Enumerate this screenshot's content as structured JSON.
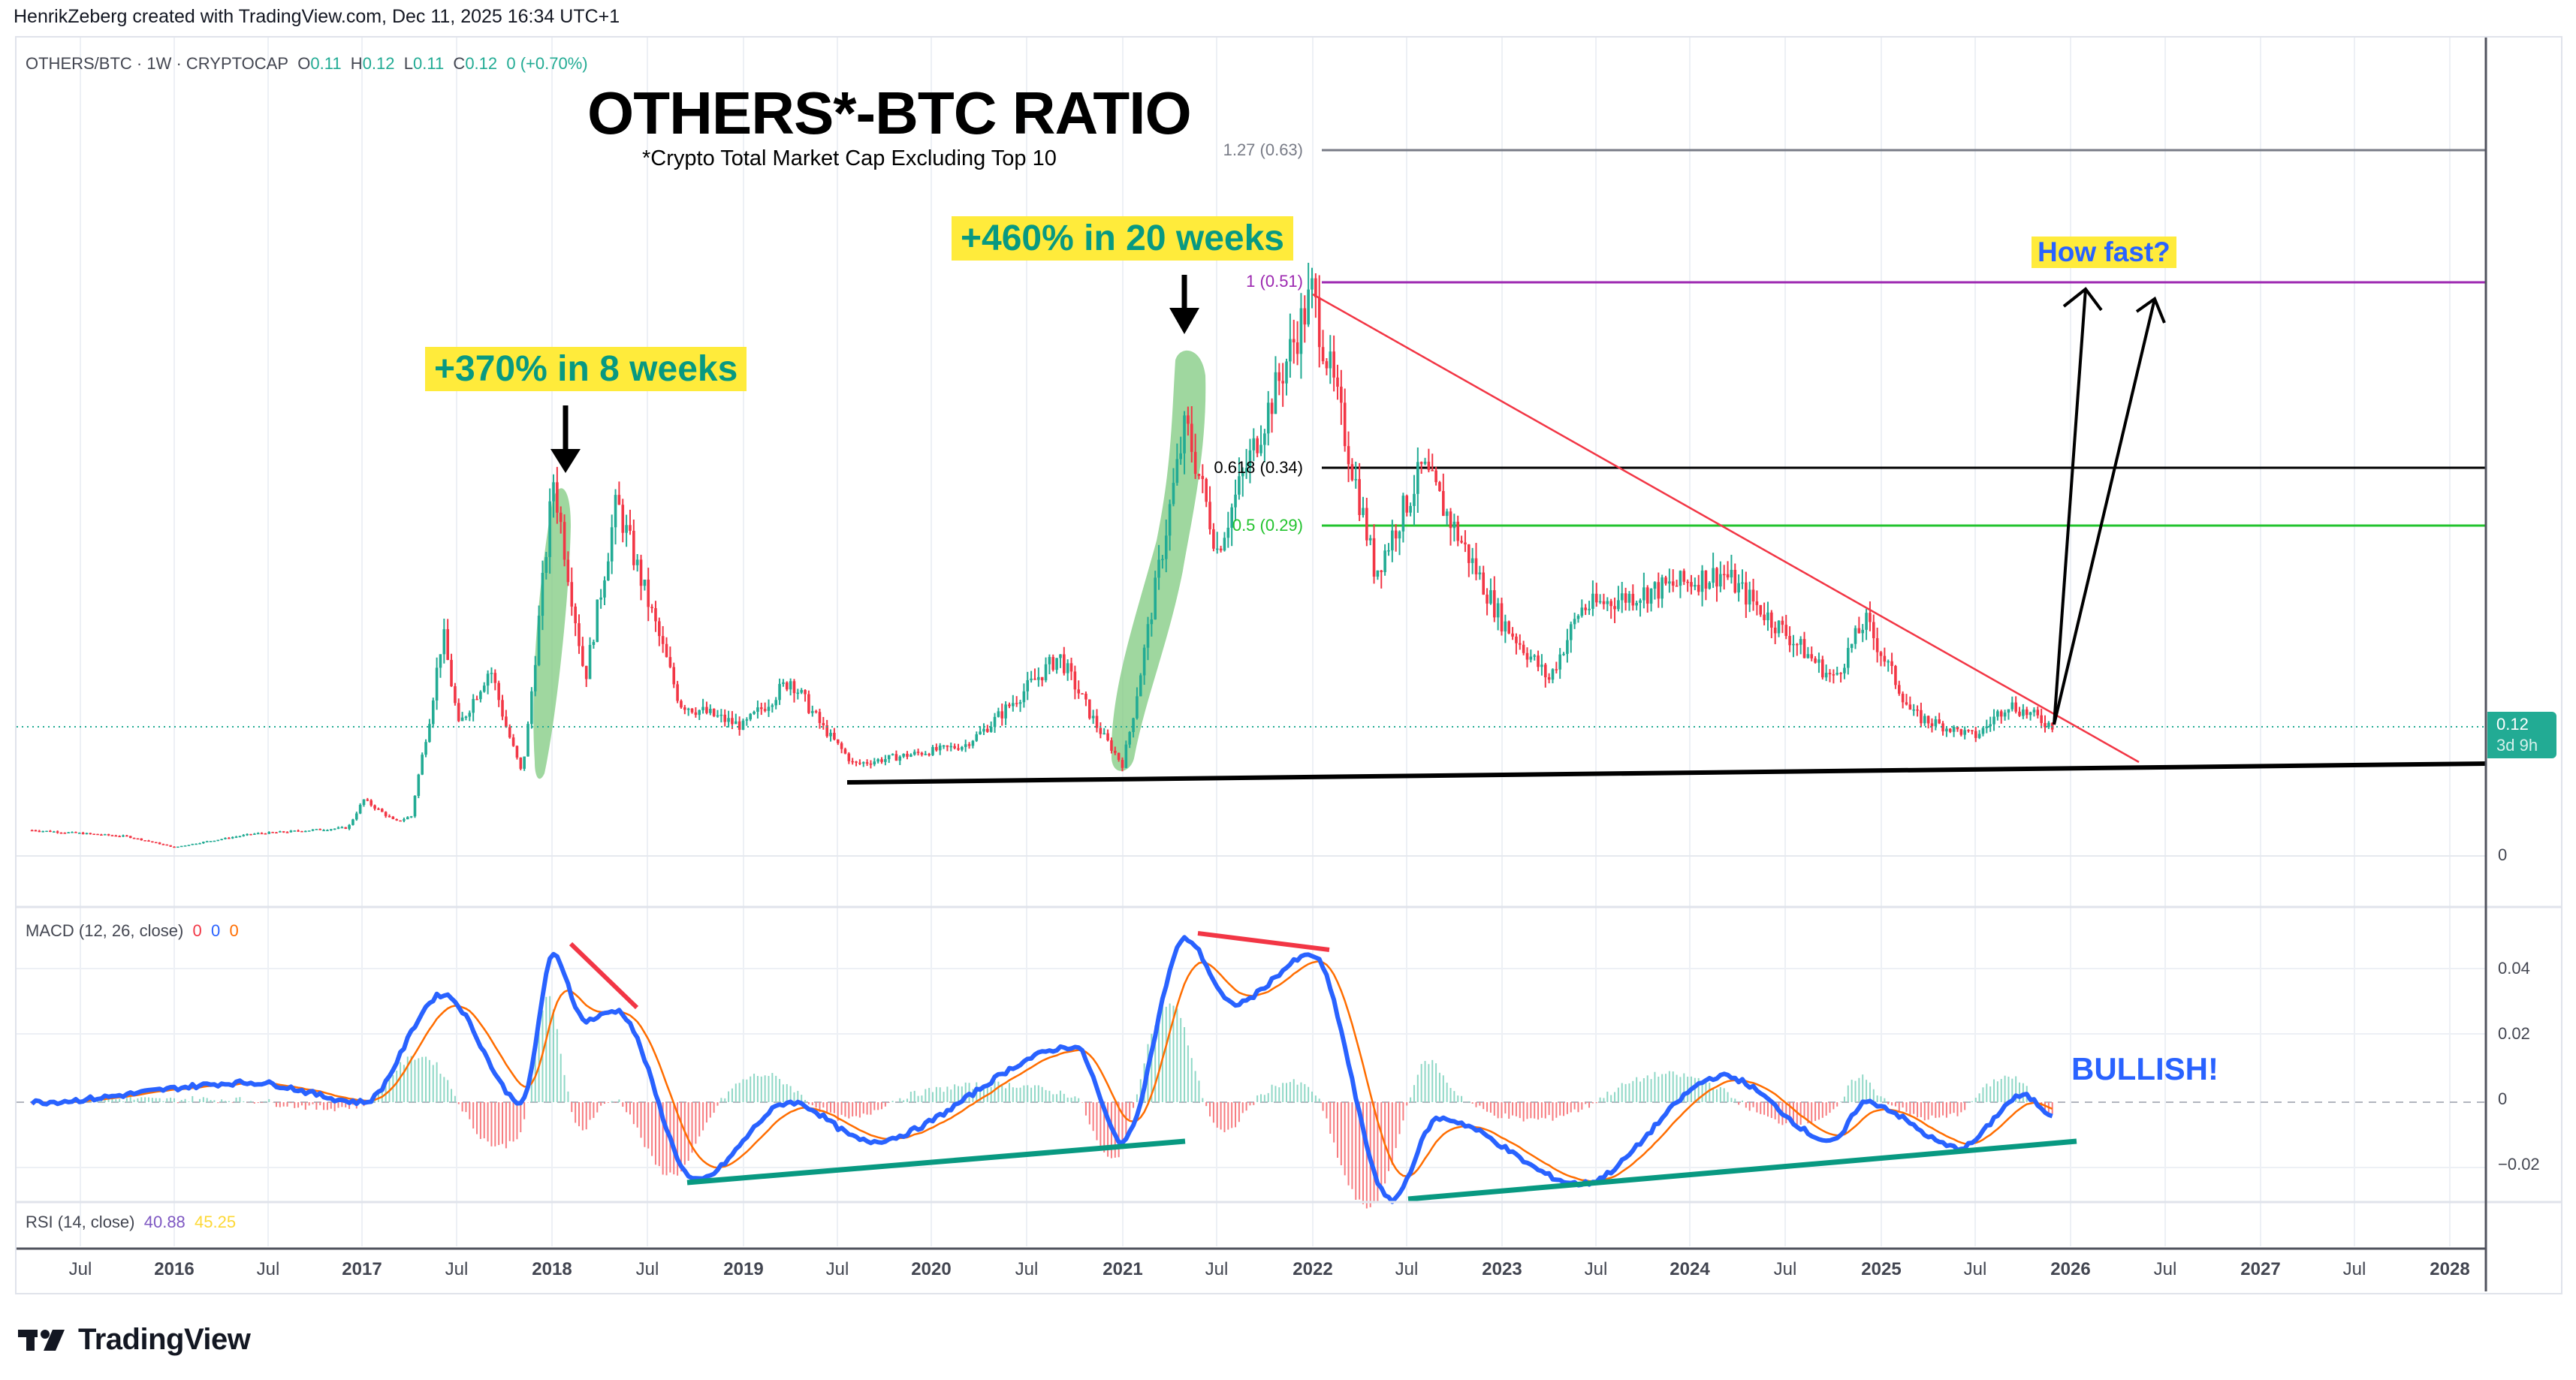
{
  "credit": "HenrikZeberg created with TradingView.com, Dec 11, 2025 16:34 UTC+1",
  "header": {
    "symbol": "OTHERS/BTC · 1W · CRYPTOCAP",
    "ohlc": [
      {
        "k": "O",
        "v": "0.11"
      },
      {
        "k": "H",
        "v": "0.12"
      },
      {
        "k": "L",
        "v": "0.11"
      },
      {
        "k": "C",
        "v": "0.12"
      }
    ],
    "change": "0 (+0.70%)"
  },
  "annotations": {
    "title": "OTHERS*-BTC RATIO",
    "subtitle": "*Crypto Total Market Cap Excluding Top 10",
    "callout_2018": "+370% in 8 weeks",
    "callout_2021": "+460% in 20 weeks",
    "callout_future": "How fast?",
    "macd_note": "BULLISH!"
  },
  "fib_levels": [
    {
      "label": "1.27 (0.63)",
      "y": 200,
      "color": "#787b86",
      "width": 3
    },
    {
      "label": "1 (0.51)",
      "y": 376,
      "color": "#9c27b0",
      "width": 3
    },
    {
      "label": "0.618 (0.34)",
      "y": 623,
      "color": "#000000",
      "width": 3
    },
    {
      "label": "0.5 (0.29)",
      "y": 700,
      "color": "#22c32e",
      "width": 3
    }
  ],
  "price_axis": {
    "current_price": "0.12",
    "countdown": "3d 9h",
    "zero_label": "0"
  },
  "macd": {
    "legend": "MACD (12, 26, close)",
    "values": [
      {
        "v": "0",
        "color": "#f23645"
      },
      {
        "v": "0",
        "color": "#2962ff"
      },
      {
        "v": "0",
        "color": "#ff6d00"
      }
    ],
    "axis": [
      "0.04",
      "0.02",
      "0",
      "−0.02"
    ]
  },
  "rsi": {
    "legend": "RSI (14, close)",
    "values": [
      {
        "v": "40.88",
        "color": "#7e57c2"
      },
      {
        "v": "45.25",
        "color": "#fdd835"
      }
    ]
  },
  "time_axis": [
    {
      "label": "Jul",
      "x": 107,
      "year": false
    },
    {
      "label": "2016",
      "x": 232,
      "year": true
    },
    {
      "label": "Jul",
      "x": 357,
      "year": false
    },
    {
      "label": "2017",
      "x": 482,
      "year": true
    },
    {
      "label": "Jul",
      "x": 608,
      "year": false
    },
    {
      "label": "2018",
      "x": 735,
      "year": true
    },
    {
      "label": "Jul",
      "x": 862,
      "year": false
    },
    {
      "label": "2019",
      "x": 990,
      "year": true
    },
    {
      "label": "Jul",
      "x": 1115,
      "year": false
    },
    {
      "label": "2020",
      "x": 1240,
      "year": true
    },
    {
      "label": "Jul",
      "x": 1367,
      "year": false
    },
    {
      "label": "2021",
      "x": 1495,
      "year": true
    },
    {
      "label": "Jul",
      "x": 1620,
      "year": false
    },
    {
      "label": "2022",
      "x": 1748,
      "year": true
    },
    {
      "label": "Jul",
      "x": 1873,
      "year": false
    },
    {
      "label": "2023",
      "x": 2000,
      "year": true
    },
    {
      "label": "Jul",
      "x": 2125,
      "year": false
    },
    {
      "label": "2024",
      "x": 2250,
      "year": true
    },
    {
      "label": "Jul",
      "x": 2377,
      "year": false
    },
    {
      "label": "2025",
      "x": 2505,
      "year": true
    },
    {
      "label": "Jul",
      "x": 2630,
      "year": false
    },
    {
      "label": "2026",
      "x": 2757,
      "year": true
    },
    {
      "label": "Jul",
      "x": 2883,
      "year": false
    },
    {
      "label": "2027",
      "x": 3010,
      "year": true
    },
    {
      "label": "Jul",
      "x": 3135,
      "year": false
    },
    {
      "label": "2028",
      "x": 3262,
      "year": true
    }
  ],
  "logo": "TradingView",
  "chart_data": [
    {
      "type": "candlestick",
      "title": "OTHERS*-BTC RATIO",
      "subtitle": "*Crypto Total Market Cap Excluding Top 10",
      "symbol": "OTHERS/BTC",
      "interval": "1W",
      "xlabel": "",
      "ylabel": "",
      "x_range": [
        "2015-04",
        "2028-03"
      ],
      "current": {
        "open": 0.11,
        "high": 0.12,
        "low": 0.11,
        "close": 0.12,
        "change_pct": 0.7
      },
      "approx_close_path": [
        {
          "date": "2015-04",
          "value": 0.018
        },
        {
          "date": "2015-10",
          "value": 0.013
        },
        {
          "date": "2016-01",
          "value": 0.005
        },
        {
          "date": "2016-06",
          "value": 0.015
        },
        {
          "date": "2016-12",
          "value": 0.02
        },
        {
          "date": "2017-01",
          "value": 0.045
        },
        {
          "date": "2017-03",
          "value": 0.025
        },
        {
          "date": "2017-04",
          "value": 0.03
        },
        {
          "date": "2017-06",
          "value": 0.2
        },
        {
          "date": "2017-07",
          "value": 0.12
        },
        {
          "date": "2017-09",
          "value": 0.17
        },
        {
          "date": "2017-11",
          "value": 0.07
        },
        {
          "date": "2018-01",
          "value": 0.33
        },
        {
          "date": "2018-03",
          "value": 0.16
        },
        {
          "date": "2018-05",
          "value": 0.31
        },
        {
          "date": "2018-09",
          "value": 0.14
        },
        {
          "date": "2019-01",
          "value": 0.12
        },
        {
          "date": "2019-04",
          "value": 0.16
        },
        {
          "date": "2019-08",
          "value": 0.08
        },
        {
          "date": "2020-03",
          "value": 0.1
        },
        {
          "date": "2020-09",
          "value": 0.18
        },
        {
          "date": "2021-01",
          "value": 0.08
        },
        {
          "date": "2021-05",
          "value": 0.38
        },
        {
          "date": "2021-07",
          "value": 0.27
        },
        {
          "date": "2022-01",
          "value": 0.5
        },
        {
          "date": "2022-05",
          "value": 0.25
        },
        {
          "date": "2022-08",
          "value": 0.34
        },
        {
          "date": "2023-01",
          "value": 0.21
        },
        {
          "date": "2023-04",
          "value": 0.16
        },
        {
          "date": "2023-06",
          "value": 0.22
        },
        {
          "date": "2024-03",
          "value": 0.25
        },
        {
          "date": "2024-10",
          "value": 0.16
        },
        {
          "date": "2024-12",
          "value": 0.21
        },
        {
          "date": "2025-03",
          "value": 0.13
        },
        {
          "date": "2025-07",
          "value": 0.11
        },
        {
          "date": "2025-09",
          "value": 0.14
        },
        {
          "date": "2025-12",
          "value": 0.12
        }
      ],
      "fibonacci": [
        {
          "ratio": 1.27,
          "value": 0.63
        },
        {
          "ratio": 1.0,
          "value": 0.51
        },
        {
          "ratio": 0.618,
          "value": 0.34
        },
        {
          "ratio": 0.5,
          "value": 0.29
        }
      ],
      "y_axis_ticks": [
        "0"
      ],
      "trendlines": [
        {
          "name": "descending resistance",
          "color": "#f23645",
          "from": {
            "date": "2022-01",
            "value": 0.5
          },
          "to": {
            "date": "2026-05",
            "value": 0.09
          }
        },
        {
          "name": "rising support",
          "color": "#000000",
          "from": {
            "date": "2019-08",
            "value": 0.065
          },
          "to": {
            "date": "2028-03",
            "value": 0.085
          }
        }
      ],
      "annotations": [
        {
          "text": "+370% in 8 weeks",
          "near": "2017-11 to 2018-01"
        },
        {
          "text": "+460% in 20 weeks",
          "near": "2021-01 to 2021-05"
        },
        {
          "text": "How fast?",
          "near": "2026-01 projected arrows toward 0.51"
        }
      ]
    },
    {
      "type": "line",
      "title": "MACD (12, 26, close)",
      "legend": [
        "histogram",
        "MACD",
        "signal"
      ],
      "ylim": [
        -0.03,
        0.05
      ],
      "y_ticks": [
        0.04,
        0.02,
        0,
        -0.02
      ],
      "series": [
        {
          "name": "MACD",
          "color": "#2962ff",
          "points": [
            {
              "date": "2015-04",
              "v": 0.0
            },
            {
              "date": "2016-06",
              "v": 0.006
            },
            {
              "date": "2017-01",
              "v": 0.0
            },
            {
              "date": "2017-06",
              "v": 0.033
            },
            {
              "date": "2017-11",
              "v": 0.0
            },
            {
              "date": "2018-01",
              "v": 0.045
            },
            {
              "date": "2018-03",
              "v": 0.025
            },
            {
              "date": "2018-05",
              "v": 0.028
            },
            {
              "date": "2018-10",
              "v": -0.024
            },
            {
              "date": "2019-04",
              "v": 0.0
            },
            {
              "date": "2019-09",
              "v": -0.012
            },
            {
              "date": "2020-10",
              "v": 0.017
            },
            {
              "date": "2021-01",
              "v": -0.012
            },
            {
              "date": "2021-05",
              "v": 0.05
            },
            {
              "date": "2021-08",
              "v": 0.03
            },
            {
              "date": "2022-01",
              "v": 0.045
            },
            {
              "date": "2022-06",
              "v": -0.03
            },
            {
              "date": "2022-09",
              "v": -0.005
            },
            {
              "date": "2023-06",
              "v": -0.025
            },
            {
              "date": "2024-03",
              "v": 0.008
            },
            {
              "date": "2024-10",
              "v": -0.012
            },
            {
              "date": "2024-12",
              "v": 0.0
            },
            {
              "date": "2025-06",
              "v": -0.014
            },
            {
              "date": "2025-10",
              "v": 0.002
            },
            {
              "date": "2025-12",
              "v": -0.004
            }
          ]
        }
      ],
      "divergences": [
        {
          "type": "bearish",
          "color": "#f23645",
          "period": "2018"
        },
        {
          "type": "bearish",
          "color": "#f23645",
          "period": "2021-2022"
        },
        {
          "type": "bullish",
          "color": "#089981",
          "period": "2018-10 to 2021-01"
        },
        {
          "type": "bullish",
          "color": "#089981",
          "period": "2022-06 to 2026-01"
        }
      ]
    }
  ]
}
